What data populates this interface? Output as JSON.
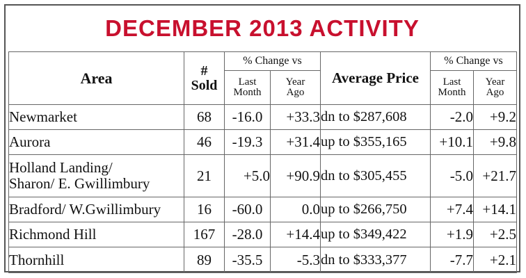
{
  "title": "DECEMBER 2013 ACTIVITY",
  "headers": {
    "area": "Area",
    "sold_line1": "#",
    "sold_line2": "Sold",
    "pct_change_group": "% Change vs",
    "last_month_line1": "Last",
    "last_month_line2": "Month",
    "year_ago_line1": "Year",
    "year_ago_line2": "Ago",
    "average_price": "Average Price",
    "pct_change_group2": "% Change vs",
    "last_month2_line1": "Last",
    "last_month2_line2": "Month",
    "year_ago2_line1": "Year",
    "year_ago2_line2": "Ago"
  },
  "rows": [
    {
      "area_line1": "Newmarket",
      "area_line2": "",
      "sold": "68",
      "sold_chg_month": "-16.0",
      "sold_chg_year": "+33.3",
      "avg_price": "dn to $287,608",
      "price_chg_month": "-2.0",
      "price_chg_year": "+9.2"
    },
    {
      "area_line1": "Aurora",
      "area_line2": "",
      "sold": "46",
      "sold_chg_month": "-19.3",
      "sold_chg_year": "+31.4",
      "avg_price": "up to $355,165",
      "price_chg_month": "+10.1",
      "price_chg_year": "+9.8"
    },
    {
      "area_line1": "Holland Landing/",
      "area_line2": "Sharon/ E. Gwillimbury",
      "sold": "21",
      "sold_chg_month": "+5.0",
      "sold_chg_year": "+90.9",
      "avg_price": "dn to $305,455",
      "price_chg_month": "-5.0",
      "price_chg_year": "+21.7"
    },
    {
      "area_line1": "Bradford/ W.Gwillimbury",
      "area_line2": "",
      "sold": "16",
      "sold_chg_month": "-60.0",
      "sold_chg_year": "0.0",
      "avg_price": "up to $266,750",
      "price_chg_month": "+7.4",
      "price_chg_year": "+14.1"
    },
    {
      "area_line1": "Richmond Hill",
      "area_line2": "",
      "sold": "167",
      "sold_chg_month": "-28.0",
      "sold_chg_year": "+14.4",
      "avg_price": "up to $349,422",
      "price_chg_month": "+1.9",
      "price_chg_year": "+2.5"
    },
    {
      "area_line1": "Thornhill",
      "area_line2": "",
      "sold": "89",
      "sold_chg_month": "-35.5",
      "sold_chg_year": "-5.3",
      "avg_price": "dn to $333,377",
      "price_chg_month": "-7.7",
      "price_chg_year": "+2.1"
    }
  ]
}
